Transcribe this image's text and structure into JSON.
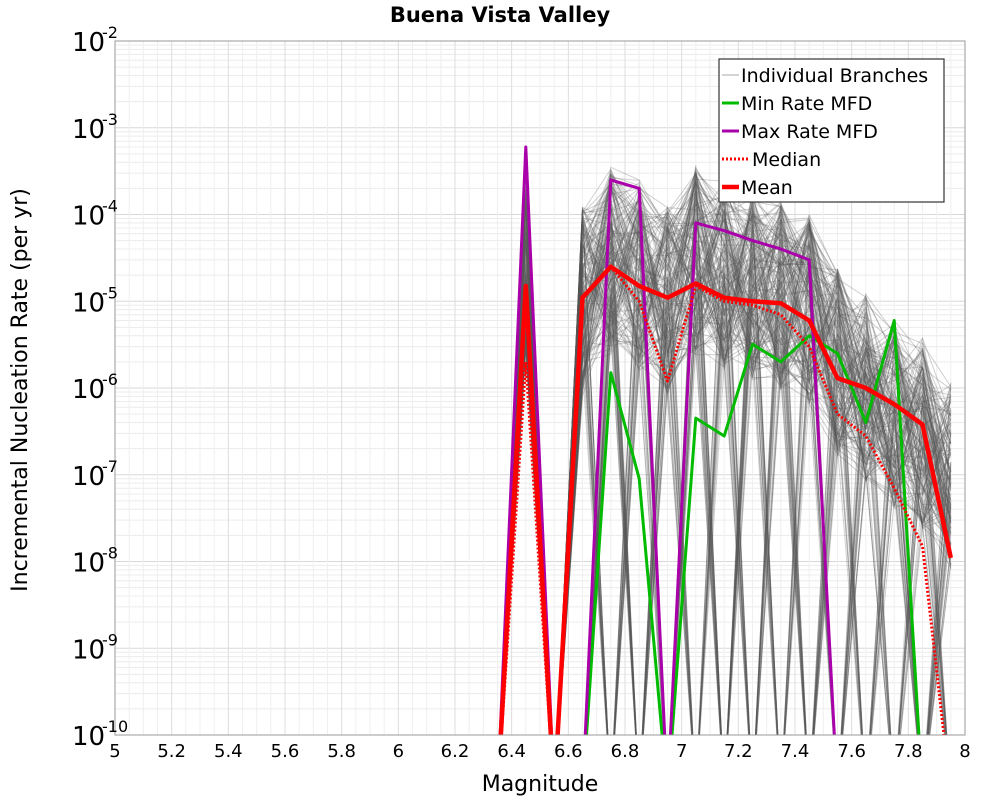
{
  "chart_data": {
    "type": "line",
    "title": "Buena Vista Valley",
    "xlabel": "Magnitude",
    "ylabel": "Incremental Nucleation Rate (per yr)",
    "xlim": [
      5,
      8
    ],
    "ylim_log10": [
      -10,
      -2
    ],
    "x_ticks": [
      "5",
      "5.2",
      "5.4",
      "5.6",
      "5.8",
      "6",
      "6.2",
      "6.4",
      "6.6",
      "6.8",
      "7",
      "7.2",
      "7.4",
      "7.6",
      "7.8",
      "8"
    ],
    "y_ticks": [
      {
        "base": "10",
        "exp": "-2"
      },
      {
        "base": "10",
        "exp": "-3"
      },
      {
        "base": "10",
        "exp": "-4"
      },
      {
        "base": "10",
        "exp": "-5"
      },
      {
        "base": "10",
        "exp": "-6"
      },
      {
        "base": "10",
        "exp": "-7"
      },
      {
        "base": "10",
        "exp": "-8"
      },
      {
        "base": "10",
        "exp": "-9"
      },
      {
        "base": "10",
        "exp": "-10"
      }
    ],
    "grid": true,
    "legend_position": "top-right",
    "x": [
      6.35,
      6.45,
      6.55,
      6.65,
      6.75,
      6.85,
      6.95,
      7.05,
      7.15,
      7.25,
      7.35,
      7.45,
      7.55,
      7.65,
      7.75,
      7.85,
      7.95
    ],
    "series": [
      {
        "name": "Min Rate MFD",
        "color": "#00bb00",
        "style": "solid",
        "values": [
          0,
          0,
          0,
          0,
          1.5e-06,
          9e-08,
          0,
          4.5e-07,
          2.8e-07,
          3.2e-06,
          2e-06,
          4e-06,
          2.5e-06,
          4e-07,
          6e-06,
          0,
          0
        ]
      },
      {
        "name": "Max Rate MFD",
        "color": "#aa00aa",
        "style": "solid",
        "values": [
          0,
          0.0006,
          0,
          0,
          0.00025,
          0.0002,
          0,
          8e-05,
          6.5e-05,
          5e-05,
          4e-05,
          3e-05,
          0,
          0,
          0,
          0,
          0
        ]
      },
      {
        "name": "Median",
        "color": "#ff0000",
        "style": "dotted",
        "values": [
          0,
          2e-06,
          0,
          1.1e-05,
          2.5e-05,
          1e-05,
          1.2e-06,
          1.5e-05,
          1e-05,
          9e-06,
          7e-06,
          3e-06,
          5e-07,
          2.8e-07,
          7e-08,
          1.5e-08,
          0
        ]
      },
      {
        "name": "Mean",
        "color": "#ff0000",
        "style": "solid",
        "values": [
          0,
          1.5e-05,
          0,
          1.1e-05,
          2.5e-05,
          1.5e-05,
          1.1e-05,
          1.6e-05,
          1.1e-05,
          1e-05,
          9.5e-06,
          6e-06,
          1.3e-06,
          1e-06,
          6.5e-07,
          3.8e-07,
          1.1e-08
        ]
      }
    ],
    "branches": {
      "name": "Individual Branches",
      "count": 200,
      "color": "#555555",
      "description_center_values": [
        0,
        1e-05,
        0,
        1e-05,
        3e-05,
        2e-05,
        1e-05,
        3e-05,
        2e-05,
        1.5e-05,
        1.2e-05,
        8e-06,
        2e-06,
        1e-06,
        5e-07,
        3e-07,
        1e-07
      ]
    },
    "legend": [
      {
        "label": "Individual Branches",
        "color": "#aaaaaa",
        "style": "thin"
      },
      {
        "label": "Min Rate MFD",
        "color": "#00bb00",
        "style": "solid"
      },
      {
        "label": "Max Rate MFD",
        "color": "#aa00aa",
        "style": "solid"
      },
      {
        "label": "Median",
        "color": "#ff0000",
        "style": "dotted"
      },
      {
        "label": "Mean",
        "color": "#ff0000",
        "style": "thick"
      }
    ]
  }
}
